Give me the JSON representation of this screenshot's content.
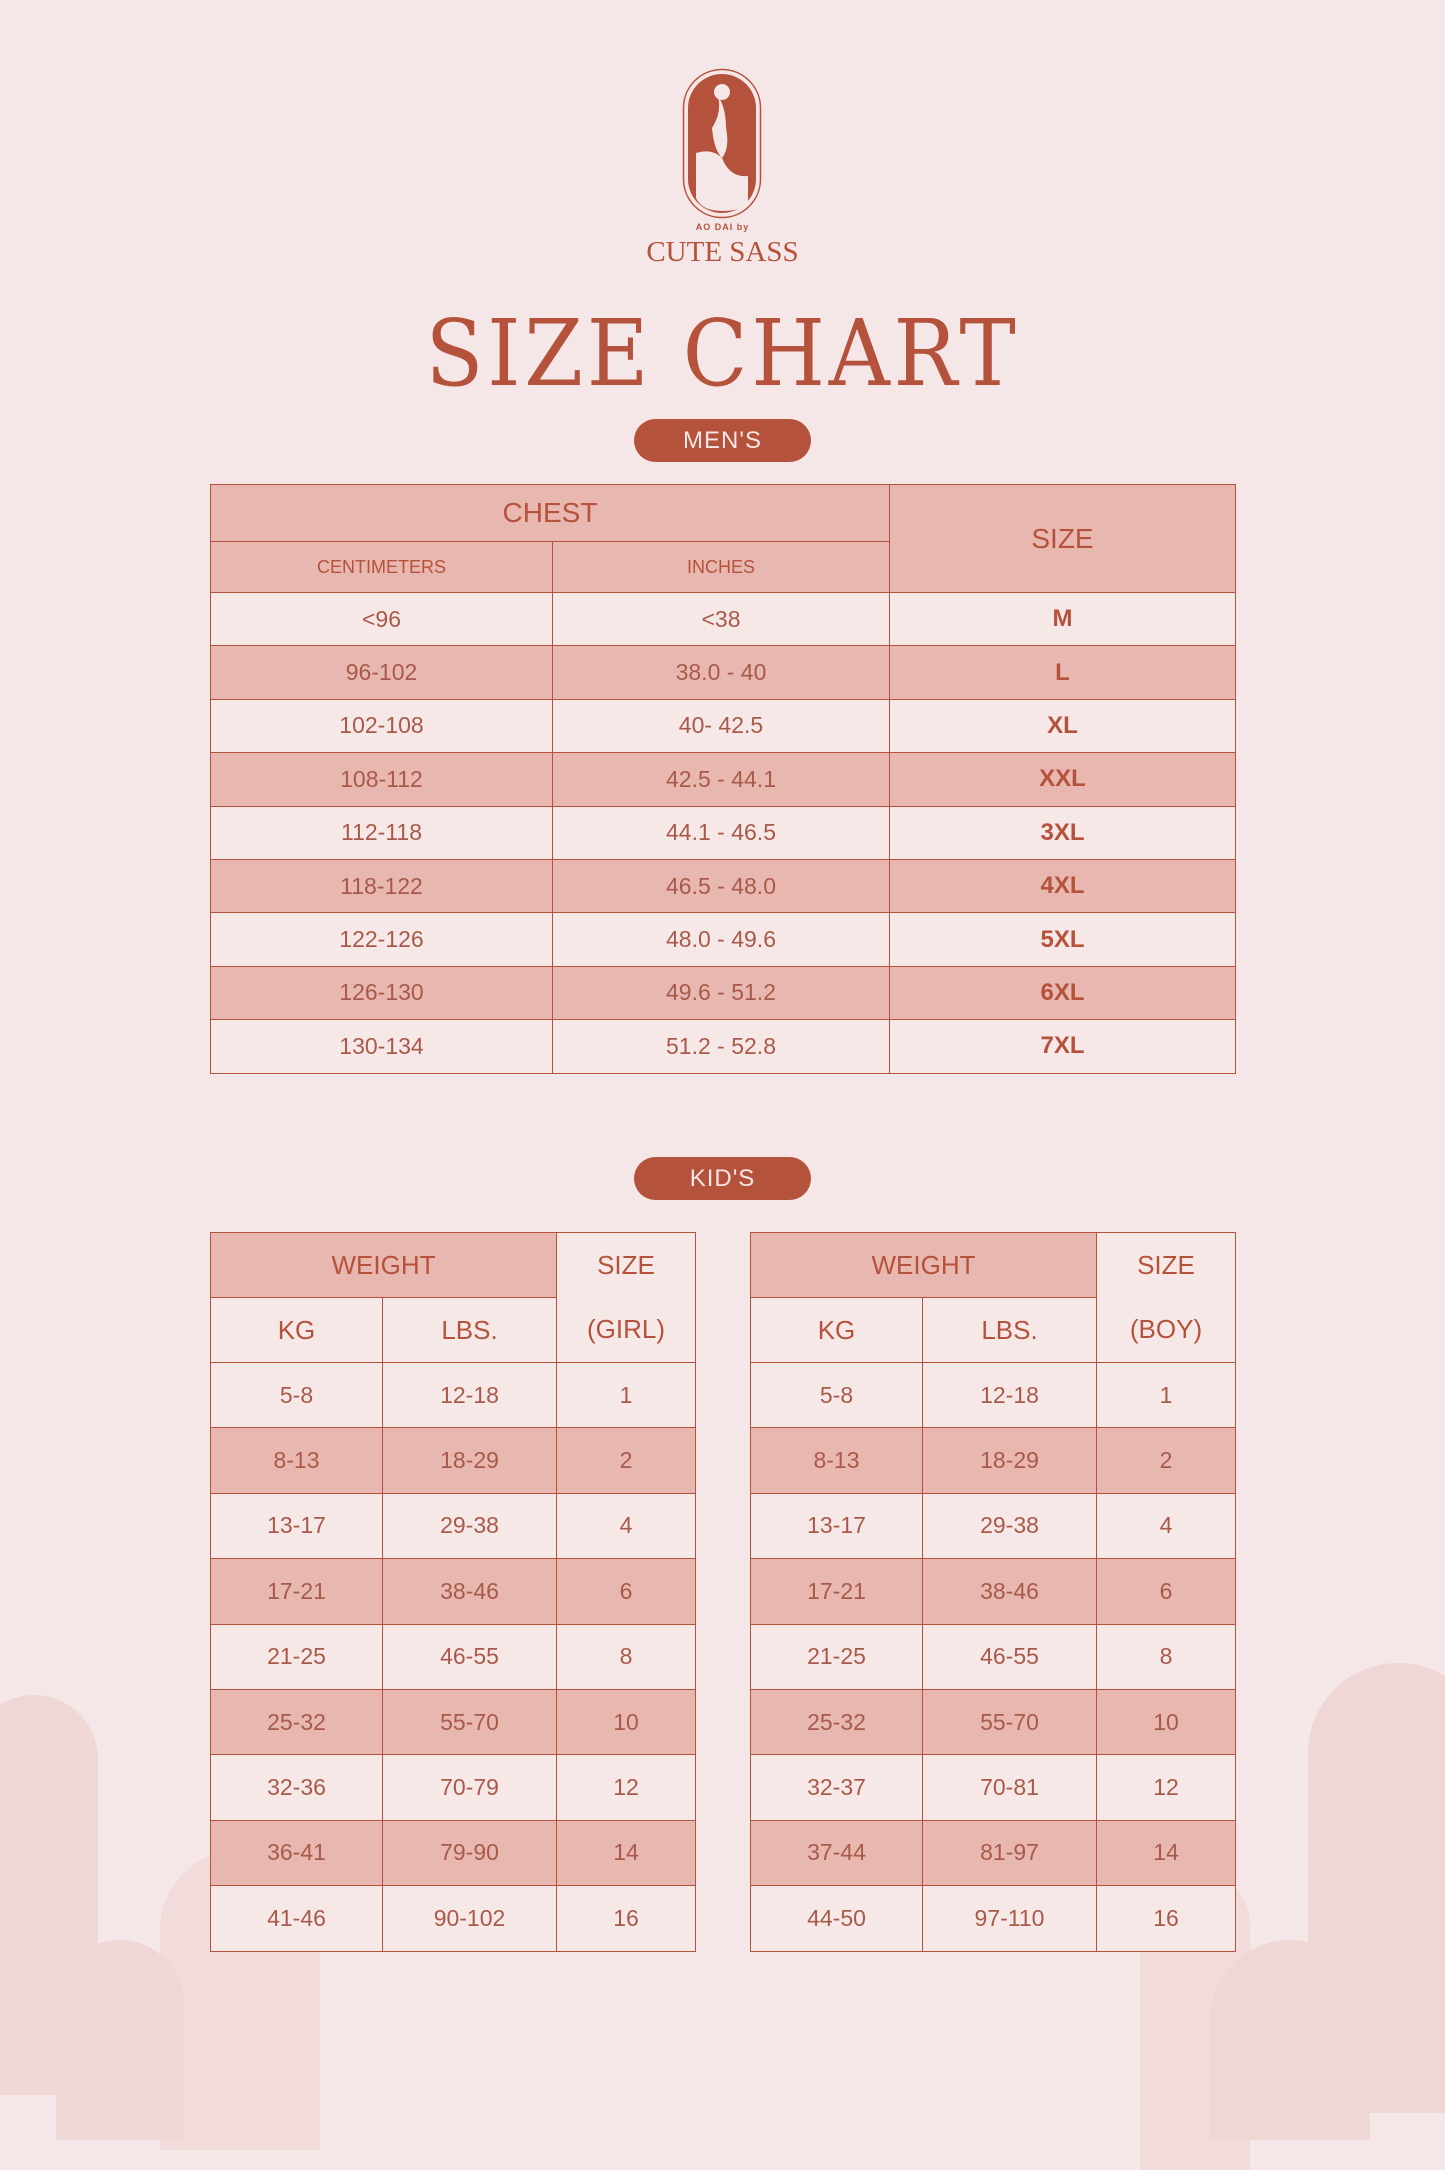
{
  "brand": {
    "tagline": "AO DAI by",
    "name": "CUTE SASS"
  },
  "title": "SIZE CHART",
  "colors": {
    "accent": "#b5523b",
    "stripe": "#e8b8b0",
    "background": "#f5e7e7"
  },
  "mens": {
    "label": "MEN'S",
    "header": {
      "chest": "CHEST",
      "size": "SIZE",
      "cm": "CENTIMETERS",
      "inches": "INCHES"
    },
    "rows": [
      [
        "<96",
        "<38",
        "M"
      ],
      [
        "96-102",
        "38.0 - 40",
        "L"
      ],
      [
        "102-108",
        "40- 42.5",
        "XL"
      ],
      [
        "108-112",
        "42.5 - 44.1",
        "XXL"
      ],
      [
        "112-118",
        "44.1 - 46.5",
        "3XL"
      ],
      [
        "118-122",
        "46.5 - 48.0",
        "4XL"
      ],
      [
        "122-126",
        "48.0 - 49.6",
        "5XL"
      ],
      [
        "126-130",
        "49.6 - 51.2",
        "6XL"
      ],
      [
        "130-134",
        "51.2 - 52.8",
        "7XL"
      ]
    ]
  },
  "kids": {
    "label": "KID'S",
    "girl": {
      "header": {
        "weight": "WEIGHT",
        "size": "SIZE",
        "kg": "KG",
        "lbs": "LBS.",
        "sub": "(GIRL)"
      },
      "rows": [
        [
          "5-8",
          "12-18",
          "1"
        ],
        [
          "8-13",
          "18-29",
          "2"
        ],
        [
          "13-17",
          "29-38",
          "4"
        ],
        [
          "17-21",
          "38-46",
          "6"
        ],
        [
          "21-25",
          "46-55",
          "8"
        ],
        [
          "25-32",
          "55-70",
          "10"
        ],
        [
          "32-36",
          "70-79",
          "12"
        ],
        [
          "36-41",
          "79-90",
          "14"
        ],
        [
          "41-46",
          "90-102",
          "16"
        ]
      ]
    },
    "boy": {
      "header": {
        "weight": "WEIGHT",
        "size": "SIZE",
        "kg": "KG",
        "lbs": "LBS.",
        "sub": "(BOY)"
      },
      "rows": [
        [
          "5-8",
          "12-18",
          "1"
        ],
        [
          "8-13",
          "18-29",
          "2"
        ],
        [
          "13-17",
          "29-38",
          "4"
        ],
        [
          "17-21",
          "38-46",
          "6"
        ],
        [
          "21-25",
          "46-55",
          "8"
        ],
        [
          "25-32",
          "55-70",
          "10"
        ],
        [
          "32-37",
          "70-81",
          "12"
        ],
        [
          "37-44",
          "81-97",
          "14"
        ],
        [
          "44-50",
          "97-110",
          "16"
        ]
      ]
    }
  }
}
